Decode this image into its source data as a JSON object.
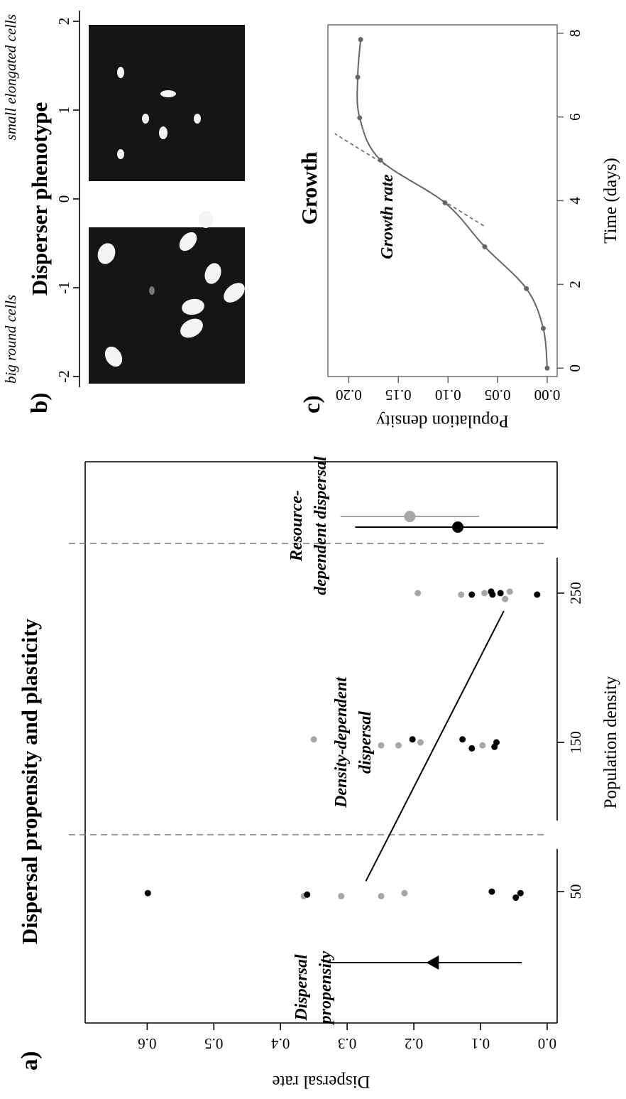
{
  "chart_data": [
    {
      "type": "scatter",
      "label": "a)",
      "title": "Dispersal propensity and plasticity",
      "xlabel": "Population density",
      "ylabel": "Dispersal rate",
      "xlim": [
        -38,
        338
      ],
      "ylim": [
        -0.015,
        0.693
      ],
      "xticks": [
        50,
        150,
        250
      ],
      "yticks": [
        {
          "value": 0,
          "label": "0.0"
        },
        0.1,
        0.2,
        0.3,
        0.4,
        0.5,
        0.6
      ],
      "series": [
        {
          "color": "#a6a6a6",
          "x": [
            47,
            47,
            47,
            49,
            152,
            148,
            148,
            150,
            148,
            250,
            249,
            250,
            246,
            251
          ],
          "values": [
            0.365,
            0.309,
            0.249,
            0.214,
            0.35,
            0.249,
            0.223,
            0.19,
            0.097,
            0.194,
            0.129,
            0.094,
            0.063,
            0.056
          ]
        },
        {
          "color": "#000000",
          "x": [
            49,
            48,
            50,
            46,
            49,
            152,
            152,
            146,
            147,
            150,
            249,
            251,
            249,
            250,
            249
          ],
          "values": [
            0.599,
            0.36,
            0.083,
            0.047,
            0.04,
            0.202,
            0.127,
            0.113,
            0.079,
            0.076,
            0.113,
            0.084,
            0.082,
            0.07,
            0.015
          ]
        }
      ],
      "fit": {
        "color": "#000000",
        "x": [
          57,
          238
        ],
        "values": [
          0.272,
          0.065
        ]
      },
      "density_label": [
        "Density-dependent",
        "dispersal"
      ],
      "propensity": {
        "label": [
          "Dispersal",
          "propensity"
        ],
        "color": "#000000",
        "value": 0.171,
        "low": 0.038,
        "high": 0.329
      },
      "resource": {
        "label": [
          "Resource-",
          "dependent dispersal"
        ],
        "points": [
          {
            "color": "#a6a6a6",
            "value": 0.206,
            "low": 0.102,
            "high": 0.31
          },
          {
            "color": "#000000",
            "value": 0.134,
            "low": -0.015,
            "high": 0.288
          }
        ]
      }
    },
    {
      "type": "axis",
      "label": "b)",
      "title": "Disperser phenotype",
      "low_label": "big round cells",
      "high_label": "small elongated cells",
      "xlim": [
        -2.12,
        2.12
      ],
      "xticks": [
        -2,
        -1,
        0,
        1,
        2
      ]
    },
    {
      "type": "line",
      "label": "c)",
      "title": "Growth",
      "xlabel": "Time (days)",
      "ylabel": "Population density",
      "xlim": [
        -0.2,
        8.2
      ],
      "ylim": [
        -0.01,
        0.221
      ],
      "xticks": [
        0,
        2,
        4,
        6,
        8
      ],
      "yticks": [
        {
          "value": 0,
          "label": "0.00"
        },
        0.05,
        {
          "value": 0.1,
          "label": "0.10"
        },
        0.15,
        {
          "value": 0.2,
          "label": "0.20"
        }
      ],
      "color": "#666666",
      "x": [
        0,
        0.95,
        1.9,
        2.9,
        3.95,
        4.97,
        5.98,
        6.95,
        7.85
      ],
      "values": [
        0,
        0.004,
        0.021,
        0.063,
        0.103,
        0.168,
        0.189,
        0.191,
        0.188
      ],
      "tangent": {
        "label": "Growth rate",
        "x": [
          3.4,
          5.6
        ],
        "values": [
          0.064,
          0.214
        ]
      }
    }
  ]
}
